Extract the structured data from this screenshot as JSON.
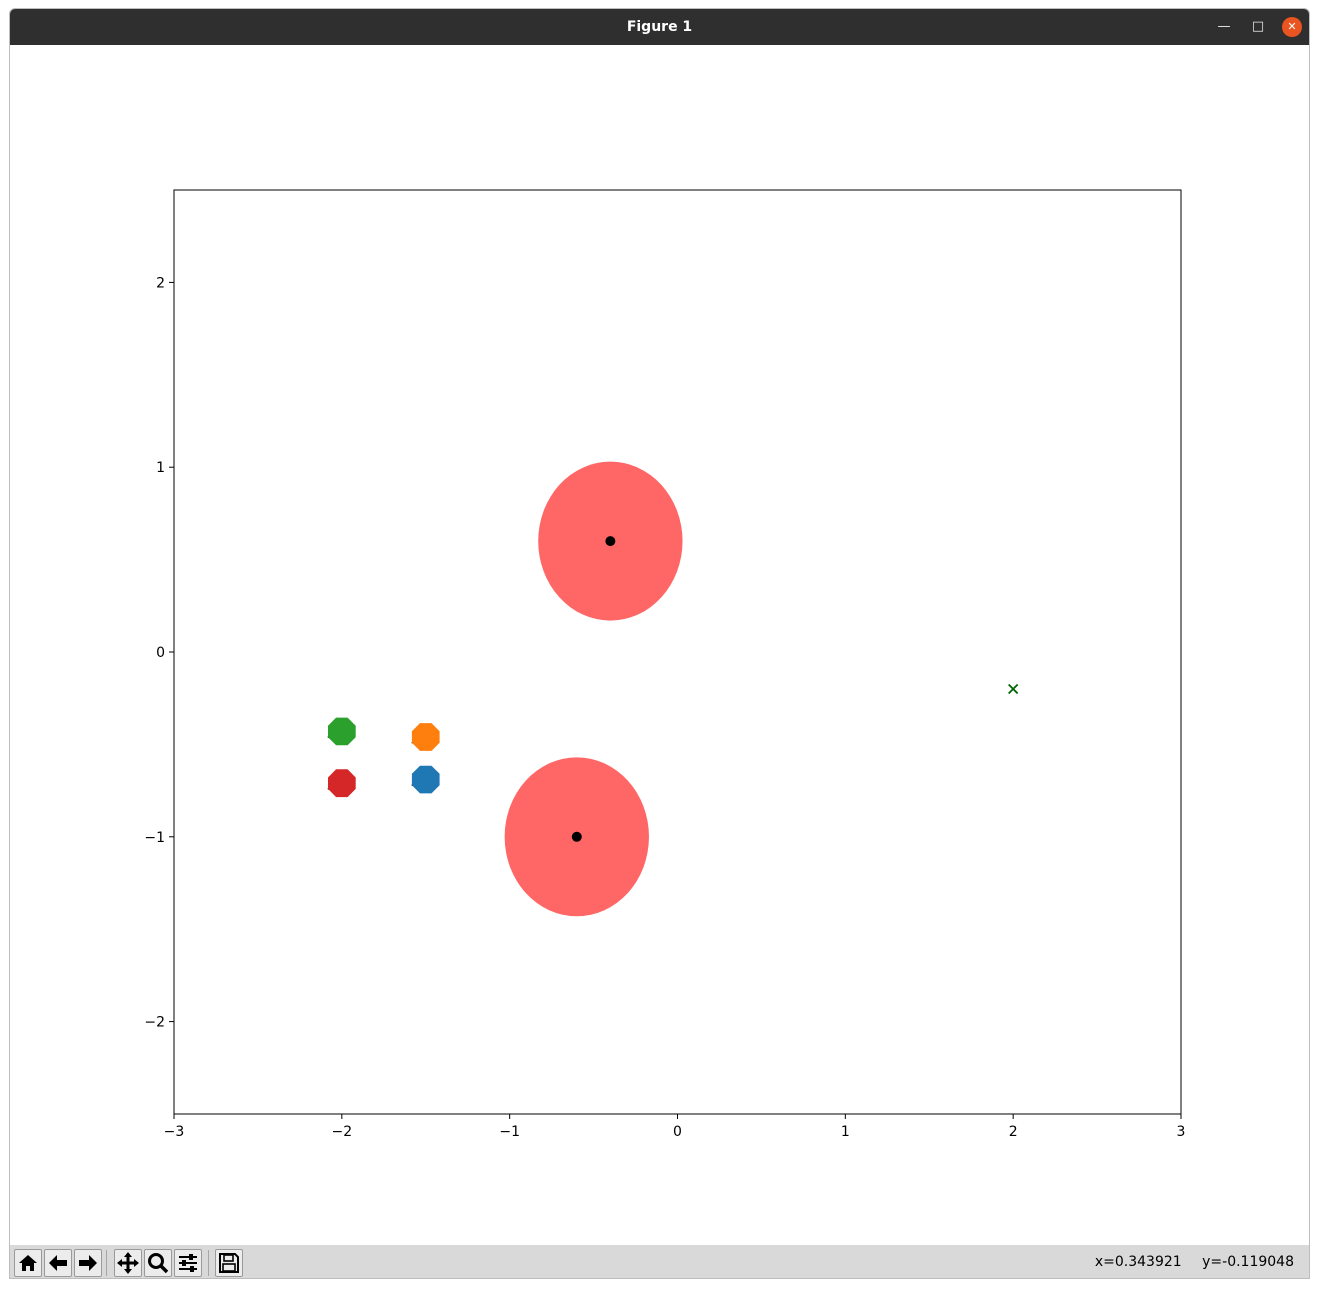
{
  "window": {
    "title": "Figure 1"
  },
  "toolbar": {
    "buttons": [
      "home-icon",
      "back-icon",
      "forward-icon",
      "pan-icon",
      "zoom-icon",
      "configure-subplots-icon",
      "save-icon"
    ],
    "coords_x": "x=0.343921",
    "coords_y": "y=-0.119048"
  },
  "chart_data": {
    "type": "scatter",
    "title": "",
    "xlabel": "",
    "ylabel": "",
    "xlim": [
      -3,
      3
    ],
    "ylim": [
      -2.5,
      2.5
    ],
    "xticks": [
      -3,
      -2,
      -1,
      0,
      1,
      2,
      3
    ],
    "yticks": [
      -2,
      -1,
      0,
      1,
      2
    ],
    "xtick_labels": [
      "−3",
      "−2",
      "−1",
      "0",
      "1",
      "2",
      "3"
    ],
    "ytick_labels": [
      "−2",
      "−1",
      "0",
      "1",
      "2"
    ],
    "grid": false,
    "legend": "none",
    "obstacles": [
      {
        "center": [
          -0.4,
          0.6
        ],
        "radius": 0.43,
        "color": "#ff6666"
      },
      {
        "center": [
          -0.6,
          -1.0
        ],
        "radius": 0.43,
        "color": "#ff6666"
      }
    ],
    "obstacle_centers_color": "#000000",
    "agents": [
      {
        "x": -1.5,
        "y": -0.69,
        "color": "#1f77b4"
      },
      {
        "x": -1.5,
        "y": -0.46,
        "color": "#ff7f0e"
      },
      {
        "x": -2.0,
        "y": -0.43,
        "color": "#2ca02c"
      },
      {
        "x": -2.0,
        "y": -0.71,
        "color": "#d62728"
      }
    ],
    "goal": {
      "x": 2.0,
      "y": -0.2,
      "marker": "x",
      "color": "#006400"
    }
  }
}
